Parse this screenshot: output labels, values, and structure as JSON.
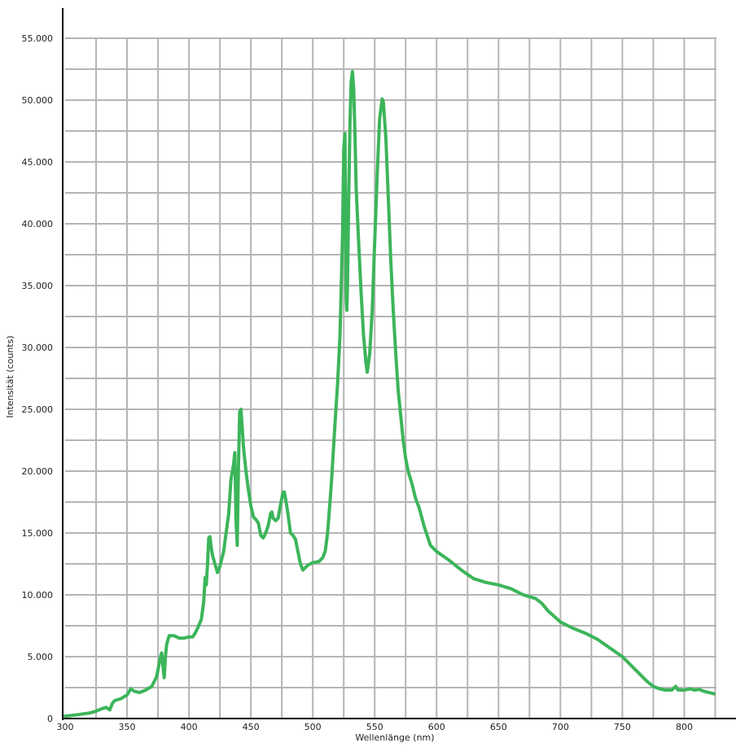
{
  "chart_data": {
    "type": "line",
    "title": "",
    "xlabel": "Wellenlänge (nm)",
    "ylabel": "Intensität (counts)",
    "xlim": [
      300,
      826
    ],
    "ylim": [
      0,
      55000
    ],
    "x_ticks": [
      "300",
      "350",
      "400",
      "450",
      "500",
      "550",
      "600",
      "650",
      "700",
      "750",
      "800"
    ],
    "y_ticks": [
      "0",
      "5.000",
      "10.000",
      "15.000",
      "20.000",
      "25.000",
      "30.000",
      "35.000",
      "40.000",
      "45.000",
      "50.000",
      "55.000"
    ],
    "grid": true,
    "grid_color": "#b5b5b5",
    "series": [
      {
        "color": "#3cb55a",
        "points": [
          [
            300,
            200
          ],
          [
            305,
            250
          ],
          [
            310,
            300
          ],
          [
            315,
            380
          ],
          [
            320,
            450
          ],
          [
            325,
            600
          ],
          [
            330,
            800
          ],
          [
            333,
            900
          ],
          [
            336,
            700
          ],
          [
            338,
            1200
          ],
          [
            340,
            1450
          ],
          [
            345,
            1600
          ],
          [
            350,
            1900
          ],
          [
            353,
            2400
          ],
          [
            356,
            2200
          ],
          [
            360,
            2100
          ],
          [
            365,
            2300
          ],
          [
            370,
            2600
          ],
          [
            374,
            3400
          ],
          [
            377,
            5000
          ],
          [
            378,
            5300
          ],
          [
            379,
            4200
          ],
          [
            380,
            3300
          ],
          [
            381,
            5000
          ],
          [
            382,
            6000
          ],
          [
            384,
            6700
          ],
          [
            388,
            6700
          ],
          [
            392,
            6500
          ],
          [
            396,
            6500
          ],
          [
            400,
            6600
          ],
          [
            403,
            6600
          ],
          [
            405,
            6900
          ],
          [
            407,
            7300
          ],
          [
            410,
            8000
          ],
          [
            412,
            9500
          ],
          [
            413,
            11400
          ],
          [
            414,
            10800
          ],
          [
            415,
            12500
          ],
          [
            416,
            14600
          ],
          [
            417,
            14700
          ],
          [
            418,
            13800
          ],
          [
            419,
            13200
          ],
          [
            421,
            12500
          ],
          [
            423,
            11800
          ],
          [
            425,
            12300
          ],
          [
            428,
            13500
          ],
          [
            430,
            15000
          ],
          [
            432,
            16500
          ],
          [
            434,
            19400
          ],
          [
            436,
            20500
          ],
          [
            437,
            21500
          ],
          [
            438,
            16000
          ],
          [
            439,
            14000
          ],
          [
            440,
            20500
          ],
          [
            441,
            24800
          ],
          [
            442,
            25000
          ],
          [
            443,
            23500
          ],
          [
            444,
            22000
          ],
          [
            446,
            20000
          ],
          [
            448,
            18500
          ],
          [
            450,
            17200
          ],
          [
            452,
            16300
          ],
          [
            454,
            16100
          ],
          [
            456,
            15800
          ],
          [
            458,
            14800
          ],
          [
            460,
            14600
          ],
          [
            462,
            15000
          ],
          [
            464,
            15600
          ],
          [
            466,
            16600
          ],
          [
            467,
            16700
          ],
          [
            468,
            16200
          ],
          [
            470,
            16000
          ],
          [
            472,
            16200
          ],
          [
            474,
            17300
          ],
          [
            476,
            18300
          ],
          [
            477,
            18300
          ],
          [
            478,
            17800
          ],
          [
            480,
            16500
          ],
          [
            482,
            15000
          ],
          [
            484,
            14800
          ],
          [
            486,
            14500
          ],
          [
            488,
            13500
          ],
          [
            490,
            12500
          ],
          [
            492,
            12000
          ],
          [
            494,
            12200
          ],
          [
            496,
            12400
          ],
          [
            500,
            12600
          ],
          [
            505,
            12700
          ],
          [
            508,
            13000
          ],
          [
            510,
            13500
          ],
          [
            512,
            15000
          ],
          [
            515,
            19000
          ],
          [
            518,
            24000
          ],
          [
            520,
            27000
          ],
          [
            522,
            31000
          ],
          [
            524,
            39000
          ],
          [
            525,
            46000
          ],
          [
            526,
            47300
          ],
          [
            527,
            34000
          ],
          [
            527.5,
            33000
          ],
          [
            528,
            35000
          ],
          [
            529,
            42000
          ],
          [
            530,
            48000
          ],
          [
            531,
            51500
          ],
          [
            532,
            52300
          ],
          [
            533,
            51000
          ],
          [
            534,
            47500
          ],
          [
            535,
            43000
          ],
          [
            537,
            38500
          ],
          [
            539,
            34500
          ],
          [
            541,
            31000
          ],
          [
            543,
            28700
          ],
          [
            544,
            28000
          ],
          [
            546,
            29500
          ],
          [
            548,
            33000
          ],
          [
            550,
            38500
          ],
          [
            552,
            44000
          ],
          [
            554,
            48500
          ],
          [
            556,
            50100
          ],
          [
            557,
            49800
          ],
          [
            559,
            47000
          ],
          [
            561,
            42000
          ],
          [
            563,
            37000
          ],
          [
            565,
            33000
          ],
          [
            567,
            29500
          ],
          [
            569,
            26500
          ],
          [
            571,
            24500
          ],
          [
            573,
            22500
          ],
          [
            575,
            21000
          ],
          [
            577,
            20000
          ],
          [
            580,
            19000
          ],
          [
            583,
            17800
          ],
          [
            586,
            17000
          ],
          [
            590,
            15500
          ],
          [
            595,
            14000
          ],
          [
            600,
            13500
          ],
          [
            610,
            12800
          ],
          [
            620,
            12000
          ],
          [
            630,
            11300
          ],
          [
            640,
            11000
          ],
          [
            650,
            10800
          ],
          [
            660,
            10500
          ],
          [
            670,
            10000
          ],
          [
            680,
            9700
          ],
          [
            685,
            9300
          ],
          [
            690,
            8700
          ],
          [
            700,
            7800
          ],
          [
            710,
            7300
          ],
          [
            720,
            6900
          ],
          [
            730,
            6400
          ],
          [
            740,
            5700
          ],
          [
            750,
            5000
          ],
          [
            760,
            4000
          ],
          [
            770,
            3000
          ],
          [
            775,
            2600
          ],
          [
            780,
            2400
          ],
          [
            785,
            2300
          ],
          [
            790,
            2300
          ],
          [
            793,
            2600
          ],
          [
            795,
            2300
          ],
          [
            800,
            2300
          ],
          [
            805,
            2400
          ],
          [
            808,
            2300
          ],
          [
            812,
            2350
          ],
          [
            816,
            2200
          ],
          [
            820,
            2100
          ],
          [
            824,
            2000
          ]
        ]
      }
    ]
  }
}
